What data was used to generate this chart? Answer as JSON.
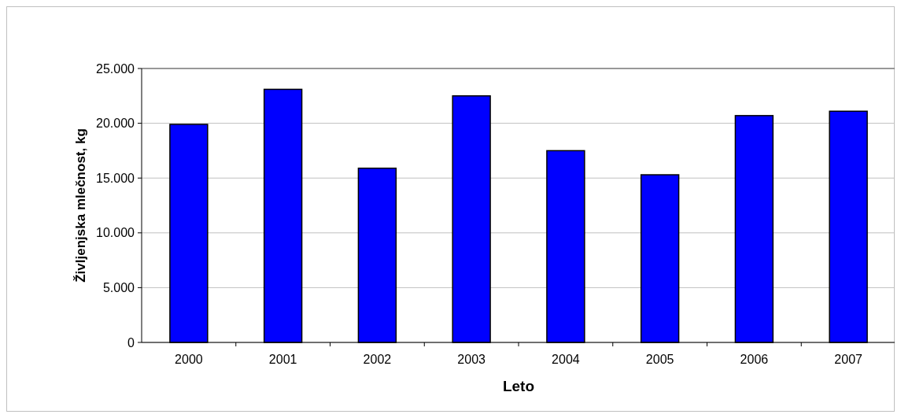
{
  "chart_data": {
    "type": "bar",
    "xlabel": "Leto",
    "ylabel": "Življenjska mlečnost, kg",
    "categories": [
      "2000",
      "2001",
      "2002",
      "2003",
      "2004",
      "2005",
      "2006",
      "2007"
    ],
    "values": [
      19900,
      23100,
      15900,
      22500,
      17500,
      15300,
      20700,
      21100
    ],
    "color": "#0000ff",
    "ylim": [
      0,
      25000
    ],
    "yticks": [
      0,
      {
        "value": 5000,
        "label": "5.000"
      },
      {
        "value": 10000,
        "label": "10.000"
      },
      {
        "value": 15000,
        "label": "15.000"
      },
      {
        "value": 20000,
        "label": "20.000"
      },
      {
        "value": 25000,
        "label": "25.000"
      }
    ],
    "grid": "y"
  }
}
